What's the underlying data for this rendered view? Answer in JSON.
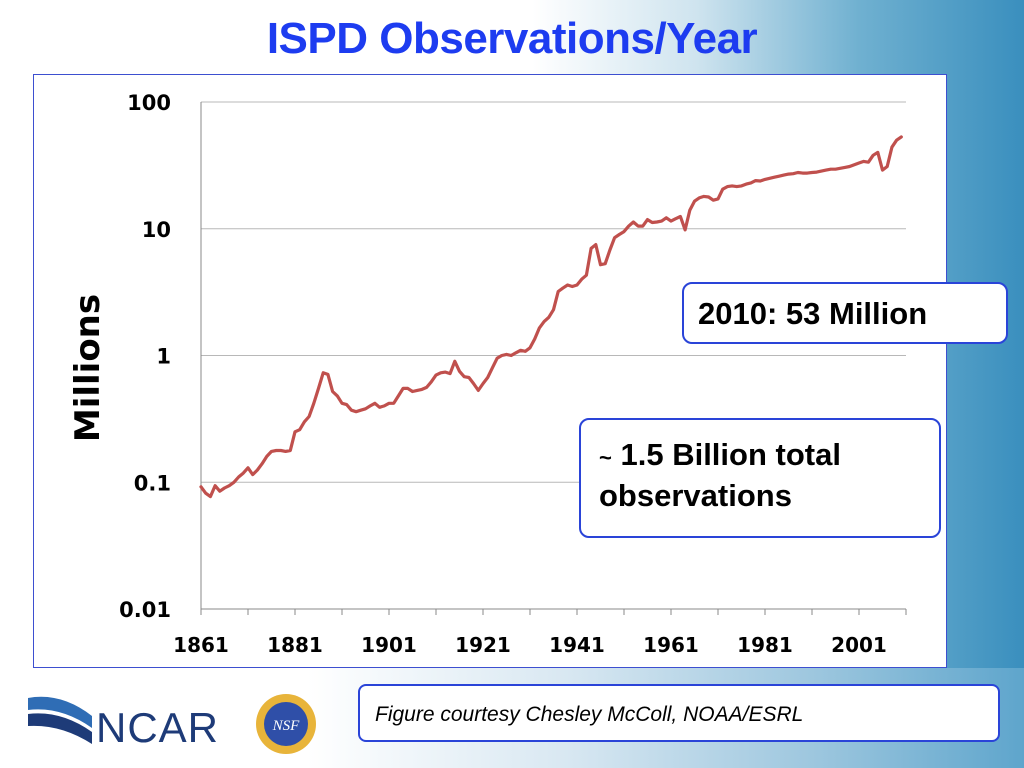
{
  "slide": {
    "title": "ISPD Observations/Year",
    "callout_2010": "2010: 53 Million",
    "callout_total_tilde": "~",
    "callout_total_line1": "1.5 Billion total",
    "callout_total_line2": "observations",
    "credit": "Figure courtesy Chesley McColl, NOAA/ESRL",
    "ncar_logo_text": "NCAR",
    "nsf_logo_text": "NSF"
  },
  "colors": {
    "title": "#1d3cf0",
    "line": "#c0504d",
    "frame_border": "#3d4fd0",
    "grid": "#b8b8b8"
  },
  "chart_data": {
    "type": "line",
    "ylabel": "Millions",
    "xlabel": "",
    "y_scale": "log",
    "ylim": [
      0.01,
      100
    ],
    "xlim": [
      1861,
      2011
    ],
    "y_ticks": [
      {
        "value": 100,
        "label": "100"
      },
      {
        "value": 10,
        "label": "10"
      },
      {
        "value": 1,
        "label": "1"
      },
      {
        "value": 0.1,
        "label": "0.1"
      },
      {
        "value": 0.01,
        "label": "0.01"
      }
    ],
    "x_ticks": [
      1861,
      1881,
      1901,
      1921,
      1941,
      1961,
      1981,
      2001
    ],
    "grid": "horizontal",
    "series": [
      {
        "x": [
          1861,
          1862,
          1863,
          1864,
          1865,
          1866,
          1867,
          1868,
          1869,
          1870,
          1871,
          1872,
          1873,
          1874,
          1875,
          1876,
          1877,
          1878,
          1879,
          1880,
          1881,
          1882,
          1883,
          1884,
          1885,
          1886,
          1887,
          1888,
          1889,
          1890,
          1891,
          1892,
          1893,
          1894,
          1895,
          1896,
          1897,
          1898,
          1899,
          1900,
          1901,
          1902,
          1903,
          1904,
          1905,
          1906,
          1907,
          1908,
          1909,
          1910,
          1911,
          1912,
          1913,
          1914,
          1915,
          1916,
          1917,
          1918,
          1919,
          1920,
          1921,
          1922,
          1923,
          1924,
          1925,
          1926,
          1927,
          1928,
          1929,
          1930,
          1931,
          1932,
          1933,
          1934,
          1935,
          1936,
          1937,
          1938,
          1939,
          1940,
          1941,
          1942,
          1943,
          1944,
          1945,
          1946,
          1947,
          1948,
          1949,
          1950,
          1951,
          1952,
          1953,
          1954,
          1955,
          1956,
          1957,
          1958,
          1959,
          1960,
          1961,
          1962,
          1963,
          1964,
          1965,
          1966,
          1967,
          1968,
          1969,
          1970,
          1971,
          1972,
          1973,
          1974,
          1975,
          1976,
          1977,
          1978,
          1979,
          1980,
          1981,
          1982,
          1983,
          1984,
          1985,
          1986,
          1987,
          1988,
          1989,
          1990,
          1991,
          1992,
          1993,
          1994,
          1995,
          1996,
          1997,
          1998,
          1999,
          2000,
          2001,
          2002,
          2003,
          2004,
          2005,
          2006,
          2007,
          2008,
          2009,
          2010
        ],
        "y": [
          0.092,
          0.082,
          0.077,
          0.094,
          0.085,
          0.09,
          0.094,
          0.1,
          0.11,
          0.118,
          0.13,
          0.115,
          0.125,
          0.14,
          0.16,
          0.175,
          0.178,
          0.178,
          0.175,
          0.178,
          0.25,
          0.26,
          0.3,
          0.33,
          0.42,
          0.55,
          0.73,
          0.71,
          0.52,
          0.48,
          0.42,
          0.41,
          0.37,
          0.36,
          0.37,
          0.38,
          0.4,
          0.42,
          0.39,
          0.4,
          0.42,
          0.42,
          0.48,
          0.55,
          0.55,
          0.52,
          0.53,
          0.54,
          0.56,
          0.62,
          0.7,
          0.73,
          0.74,
          0.72,
          0.9,
          0.75,
          0.68,
          0.67,
          0.6,
          0.53,
          0.6,
          0.67,
          0.8,
          0.95,
          1.0,
          1.02,
          1.0,
          1.05,
          1.1,
          1.08,
          1.15,
          1.35,
          1.65,
          1.85,
          2.0,
          2.3,
          3.2,
          3.4,
          3.6,
          3.5,
          3.6,
          4.0,
          4.3,
          7.0,
          7.5,
          5.2,
          5.3,
          6.8,
          8.5,
          9.0,
          9.5,
          10.5,
          11.3,
          10.5,
          10.5,
          11.8,
          11.2,
          11.3,
          11.5,
          12.2,
          11.5,
          12.0,
          12.5,
          9.8,
          14.0,
          16.5,
          17.5,
          18.0,
          17.8,
          16.8,
          17.2,
          20.5,
          21.5,
          21.8,
          21.5,
          21.8,
          22.5,
          23.0,
          24.0,
          23.8,
          24.5,
          25.0,
          25.5,
          26.0,
          26.5,
          27.0,
          27.2,
          27.8,
          27.5,
          27.5,
          27.8,
          28.0,
          28.5,
          29.0,
          29.5,
          29.5,
          30.0,
          30.5,
          31.0,
          32.0,
          33.0,
          34.0,
          33.5,
          38.0,
          40.0,
          29.0,
          31.0,
          44.0,
          50.0,
          53.0
        ]
      }
    ]
  }
}
